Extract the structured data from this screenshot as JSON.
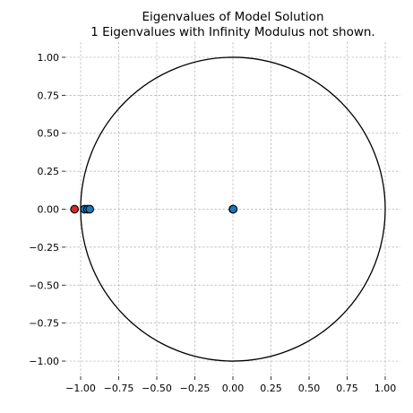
{
  "chart_data": {
    "type": "scatter",
    "title": "Eigenvalues of Model Solution",
    "subtitle": "1 Eigenvalues with Infinity Modulus not shown.",
    "xlabel": "",
    "ylabel": "",
    "xlim": [
      -1.1,
      1.1
    ],
    "ylim": [
      -1.1,
      1.1
    ],
    "xticks": [
      -1.0,
      -0.75,
      -0.5,
      -0.25,
      0.0,
      0.25,
      0.5,
      0.75,
      1.0
    ],
    "yticks": [
      -1.0,
      -0.75,
      -0.5,
      -0.25,
      0.0,
      0.25,
      0.5,
      0.75,
      1.0
    ],
    "xtick_labels": [
      "−1.00",
      "−0.75",
      "−0.50",
      "−0.25",
      "0.00",
      "0.25",
      "0.50",
      "0.75",
      "1.00"
    ],
    "ytick_labels": [
      "−1.00",
      "−0.75",
      "−0.50",
      "−0.25",
      "0.00",
      "0.25",
      "0.50",
      "0.75",
      "1.00"
    ],
    "grid": true,
    "unit_circle": {
      "radius": 1.0,
      "color": "#000000"
    },
    "series": [
      {
        "color": "#d62728",
        "points": [
          {
            "x": -1.04,
            "y": 0.0
          }
        ]
      },
      {
        "color": "#1f77b4",
        "points": [
          {
            "x": -0.975,
            "y": 0.0
          },
          {
            "x": -0.955,
            "y": 0.0
          },
          {
            "x": -0.94,
            "y": 0.0
          },
          {
            "x": 0.0,
            "y": 0.0
          },
          {
            "x": 0.002,
            "y": 0.0
          }
        ]
      }
    ]
  }
}
